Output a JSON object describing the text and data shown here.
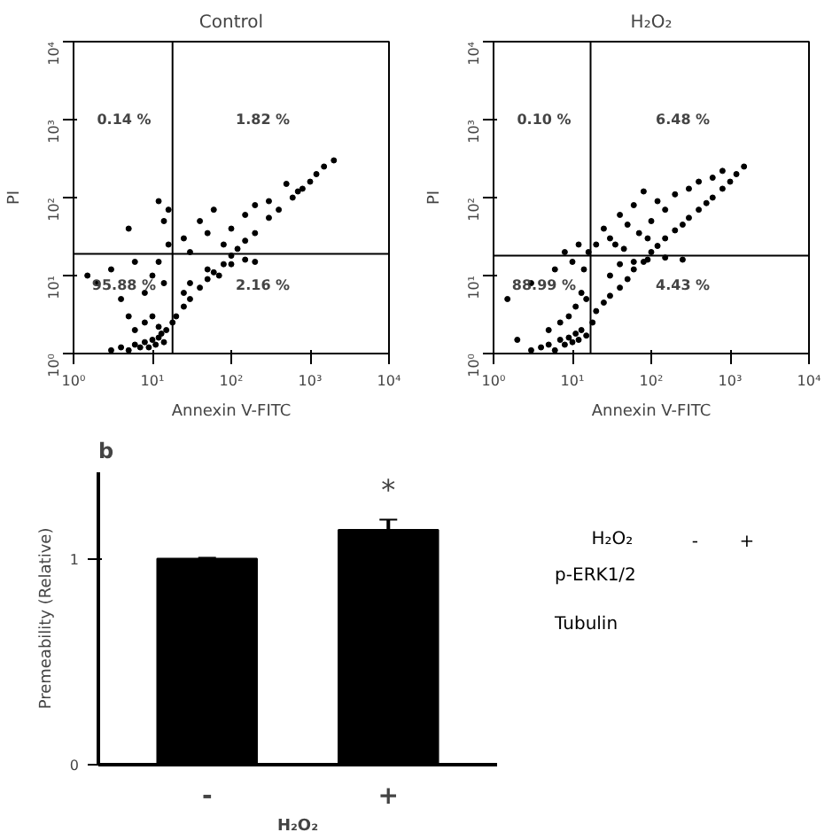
{
  "chart_data": [
    {
      "type": "scatter",
      "title": "Control",
      "xlabel": "Annexin V-FITC",
      "ylabel": "PI",
      "log": "xy",
      "marker": "circle",
      "grid": false,
      "xlim": [
        1,
        10000
      ],
      "ylim": [
        1,
        10000
      ],
      "xticks": [
        {
          "value": 1,
          "label": "10⁰"
        },
        {
          "value": 10,
          "label": "10¹"
        },
        {
          "value": 100,
          "label": "10²"
        },
        {
          "value": 1000,
          "label": "10³"
        },
        {
          "value": 10000,
          "label": "10⁴"
        }
      ],
      "yticks": [
        {
          "value": 1,
          "label": "10⁰"
        },
        {
          "value": 10,
          "label": "10¹"
        },
        {
          "value": 100,
          "label": "10²"
        },
        {
          "value": 1000,
          "label": "10³"
        },
        {
          "value": 10000,
          "label": "10⁴"
        }
      ],
      "ref_lines": [
        {
          "axis": "x",
          "value": 18,
          "color": "#000000"
        },
        {
          "axis": "y",
          "value": 19,
          "color": "#000000"
        }
      ],
      "annotations": [
        "0.14 %",
        "1.82 %",
        "95.88 %",
        "2.16 %"
      ],
      "series": [
        {
          "color": "#000000",
          "x": [
            3,
            4,
            5,
            6,
            7,
            8,
            9,
            10,
            11,
            12,
            13,
            14,
            15,
            6,
            8,
            10,
            12,
            5,
            4,
            2,
            1.5,
            3,
            6,
            8,
            10,
            12,
            14,
            16,
            5,
            12,
            14,
            16,
            18,
            20,
            25,
            30,
            40,
            50,
            60,
            80,
            100,
            120,
            150,
            200,
            300,
            400,
            600,
            800,
            1000,
            1500,
            2000,
            25,
            30,
            40,
            50,
            60,
            80,
            100,
            150,
            200,
            300,
            500,
            700,
            1200,
            30,
            50,
            70,
            100,
            150,
            200,
            25
          ],
          "values": [
            1.1,
            1.2,
            1.1,
            1.3,
            1.2,
            1.4,
            1.2,
            1.5,
            1.3,
            1.6,
            1.8,
            1.4,
            2,
            2,
            2.5,
            3,
            2.2,
            3,
            5,
            8,
            10,
            12,
            15,
            6,
            10,
            15,
            8,
            25,
            40,
            90,
            50,
            70,
            2.5,
            3,
            4,
            5,
            7,
            9,
            11,
            14,
            18,
            22,
            28,
            35,
            55,
            70,
            100,
            130,
            160,
            250,
            300,
            30,
            20,
            50,
            35,
            70,
            25,
            40,
            60,
            80,
            90,
            150,
            120,
            200,
            8,
            12,
            10,
            14,
            16,
            15,
            6
          ]
        }
      ]
    },
    {
      "type": "scatter",
      "title": "H₂O₂",
      "xlabel": "Annexin V-FITC",
      "ylabel": "PI",
      "log": "xy",
      "marker": "circle",
      "grid": false,
      "xlim": [
        1,
        10000
      ],
      "ylim": [
        1,
        10000
      ],
      "xticks": [
        {
          "value": 1,
          "label": "10⁰"
        },
        {
          "value": 10,
          "label": "10¹"
        },
        {
          "value": 100,
          "label": "10²"
        },
        {
          "value": 1000,
          "label": "10³"
        },
        {
          "value": 10000,
          "label": "10⁴"
        }
      ],
      "yticks": [
        {
          "value": 1,
          "label": "10⁰"
        },
        {
          "value": 10,
          "label": "10¹"
        },
        {
          "value": 100,
          "label": "10²"
        },
        {
          "value": 1000,
          "label": "10³"
        },
        {
          "value": 10000,
          "label": "10⁴"
        }
      ],
      "ref_lines": [
        {
          "axis": "x",
          "value": 17,
          "color": "#000000"
        },
        {
          "axis": "y",
          "value": 18,
          "color": "#000000"
        }
      ],
      "annotations": [
        "0.10 %",
        "6.48 %",
        "88.99 %",
        "4.43 %"
      ],
      "series": [
        {
          "color": "#000000",
          "x": [
            3,
            4,
            5,
            6,
            7,
            8,
            9,
            10,
            11,
            12,
            13,
            15,
            5,
            7,
            9,
            11,
            13,
            15,
            2,
            1.5,
            3,
            6,
            10,
            14,
            16,
            8,
            12,
            18,
            20,
            25,
            30,
            40,
            50,
            60,
            80,
            100,
            120,
            150,
            200,
            250,
            300,
            400,
            500,
            600,
            800,
            1000,
            1200,
            1500,
            20,
            25,
            30,
            40,
            50,
            60,
            70,
            80,
            100,
            120,
            150,
            200,
            300,
            400,
            600,
            800,
            35,
            45,
            90,
            30,
            40,
            60,
            90,
            150,
            250
          ],
          "values": [
            1.1,
            1.2,
            1.3,
            1.1,
            1.5,
            1.3,
            1.6,
            1.4,
            1.8,
            1.5,
            2,
            1.7,
            2,
            2.5,
            3,
            4,
            6,
            5,
            1.5,
            5,
            8,
            12,
            15,
            12,
            20,
            20,
            25,
            2.5,
            3.5,
            4.5,
            5.5,
            7,
            9,
            12,
            15,
            20,
            24,
            30,
            38,
            45,
            55,
            70,
            85,
            100,
            130,
            160,
            200,
            250,
            25,
            40,
            30,
            60,
            45,
            80,
            35,
            120,
            50,
            90,
            70,
            110,
            130,
            160,
            180,
            220,
            25,
            22,
            30,
            10,
            14,
            15,
            16,
            17,
            16
          ]
        }
      ]
    },
    {
      "type": "bar",
      "title": "b",
      "ylabel": "Premeability (Relative)",
      "xlabel": "H₂O₂",
      "categories": [
        "-",
        "+"
      ],
      "values": [
        1,
        1.14
      ],
      "errors": [
        0.005,
        0.05
      ],
      "color": "#000000",
      "ylim": [
        0,
        1.42
      ],
      "yticks": [
        0,
        1
      ],
      "grid": false,
      "annotations": [
        "*"
      ]
    },
    {
      "type": "other",
      "annotations": [
        "H₂O₂",
        "-",
        "+",
        "p-ERK1/2",
        "Tubulin"
      ]
    }
  ]
}
